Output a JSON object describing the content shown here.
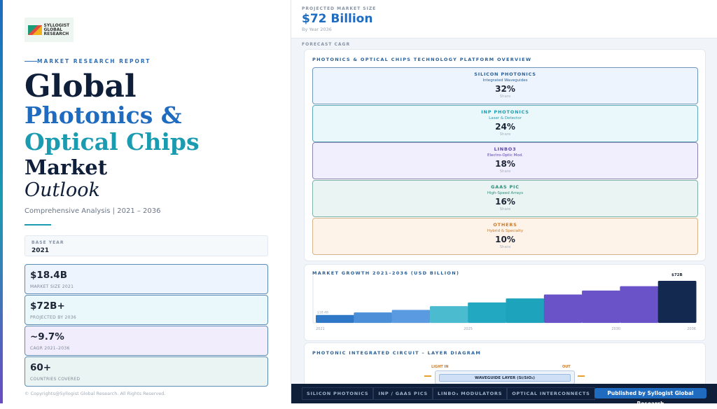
{
  "left": {
    "logo_text": "SYLLOGIST GLOBAL RESEARCH",
    "kicker": "MARKET RESEARCH REPORT",
    "title": {
      "line1": "Global",
      "line2": "Photonics &",
      "line3": "Optical Chips",
      "line4": "Market",
      "line5": "Outlook"
    },
    "subtitle": "Comprehensive Analysis  |  2021 – 2036",
    "base_year": {
      "label": "BASE YEAR",
      "value": "2021"
    },
    "stats": [
      {
        "value": "$18.4B",
        "label": "MARKET SIZE 2021",
        "bg": "#eef4fd"
      },
      {
        "value": "$72B+",
        "label": "PROJECTED BY 2036",
        "bg": "#ebf8fb"
      },
      {
        "value": "~9.7%",
        "label": "CAGR 2021–2036",
        "bg": "#f1edfc"
      },
      {
        "value": "60+",
        "label": "COUNTRIES COVERED",
        "bg": "#eaf5f3"
      }
    ],
    "copyright": "© Copyrights@Syllogist Global Research. All Rights Reserved."
  },
  "header": {
    "label": "PROJECTED MARKET SIZE",
    "value": "$72 Billion",
    "sub": "By Year 2036"
  },
  "forecast_label": "FORECAST CAGR",
  "platforms": {
    "title": "PHOTONICS & OPTICAL CHIPS TECHNOLOGY PLATFORM OVERVIEW",
    "items": [
      {
        "name": "SILICON PHOTONICS",
        "desc": "Integrated Waveguides",
        "share": "32%",
        "share_label": "Share",
        "color": "#2a5f95",
        "bg": "#edf4fd",
        "border": "#6f97bd"
      },
      {
        "name": "INP PHOTONICS",
        "desc": "Laser & Detector",
        "share": "24%",
        "share_label": "Share",
        "color": "#1a9bb0",
        "bg": "#eaf8fb",
        "border": "#5fa9b8"
      },
      {
        "name": "LINBO3",
        "desc": "Electro-Optic Mod.",
        "share": "18%",
        "share_label": "Share",
        "color": "#5b45b0",
        "bg": "#f1eefd",
        "border": "#8a84b0"
      },
      {
        "name": "GAAS PIC",
        "desc": "High-Speed Arrays",
        "share": "16%",
        "share_label": "Share",
        "color": "#2f8a7a",
        "bg": "#eaf5f3",
        "border": "#7fb3a8"
      },
      {
        "name": "OTHERS",
        "desc": "Hybrid & Specialty",
        "share": "10%",
        "share_label": "Share",
        "color": "#c77a2a",
        "bg": "#fdf3e9",
        "border": "#d8b48a"
      }
    ]
  },
  "chart_data": {
    "type": "bar",
    "title": "MARKET GROWTH 2021–2036 (USD BILLION)",
    "values": [
      18.4,
      22.4,
      26.4,
      32.3,
      38.1,
      44.3,
      50.5,
      56.7,
      63.6,
      72
    ],
    "colors": [
      "#2f78c8",
      "#4a8fd8",
      "#5a9ae0",
      "#4bbbd0",
      "#22a8c0",
      "#1ea3bd",
      "#6a52c8",
      "#6a52c8",
      "#6a52c8",
      "#14294f"
    ],
    "tick_labels": [
      "2021",
      "2025",
      "2030",
      "2036"
    ],
    "data_labels": {
      "first": "$18.4B",
      "last": "$72B"
    },
    "ylim": [
      6,
      72
    ],
    "grid": false
  },
  "diagram": {
    "title": "PHOTONIC INTEGRATED CIRCUIT – LAYER DIAGRAM",
    "light_in": "LIGHT IN",
    "out": "OUT",
    "layer": "WAVEGUIDE LAYER (Si/SiO₂)"
  },
  "footer": {
    "tags": [
      "SILICON PHOTONICS",
      "INP / GAAS PICS",
      "LINBO₃ MODULATORS",
      "OPTICAL INTERCONNECTS"
    ],
    "publisher": "Published by Syllogist Global Research"
  }
}
